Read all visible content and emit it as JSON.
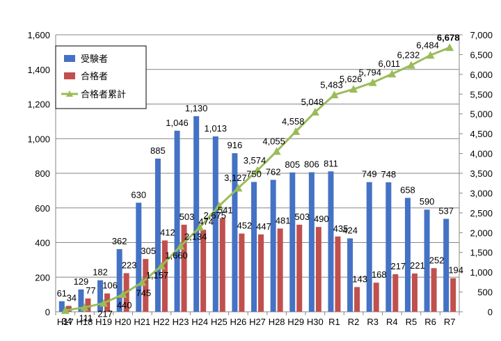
{
  "chart_data": {
    "type": "bar",
    "categories": [
      "H17",
      "H18",
      "H19",
      "H20",
      "H21",
      "H22",
      "H23",
      "H24",
      "H25",
      "H26",
      "H27",
      "H28",
      "H29",
      "H30",
      "R1",
      "R2",
      "R3",
      "R4",
      "R5",
      "R6",
      "R7"
    ],
    "series": [
      {
        "name": "受験者",
        "type": "bar",
        "axis": "left",
        "color": "#4472c4",
        "values": [
          61,
          129,
          182,
          362,
          630,
          885,
          1046,
          1130,
          1013,
          916,
          750,
          762,
          805,
          806,
          811,
          424,
          749,
          748,
          658,
          590,
          537
        ],
        "labels": [
          "61",
          "129",
          "182",
          "362",
          "630",
          "885",
          "1,046",
          "1,130",
          "1,013",
          "916",
          "750",
          "762",
          "805",
          "806",
          "811",
          "424",
          "749",
          "748",
          "658",
          "590",
          "537"
        ]
      },
      {
        "name": "合格者",
        "type": "bar",
        "axis": "left",
        "color": "#c0504d",
        "values": [
          34,
          77,
          106,
          223,
          305,
          412,
          503,
          474,
          541,
          452,
          447,
          481,
          503,
          490,
          435,
          143,
          168,
          217,
          221,
          252,
          194
        ],
        "labels": [
          "34",
          "77",
          "106",
          "223",
          "305",
          "412",
          "503",
          "474",
          "541",
          "452",
          "447",
          "481",
          "503",
          "490",
          "435",
          "143",
          "168",
          "217",
          "221",
          "252",
          "194"
        ]
      },
      {
        "name": "合格者累計",
        "type": "line",
        "axis": "right",
        "color": "#9bbb59",
        "values": [
          34,
          111,
          217,
          440,
          745,
          1157,
          1660,
          2134,
          2675,
          3127,
          3574,
          4055,
          4558,
          5048,
          5483,
          5626,
          5794,
          6011,
          6232,
          6484,
          6678
        ],
        "labels": [
          "34",
          "111",
          "217",
          "440",
          "745",
          "1,157",
          "1,660",
          "2,134",
          "2,675",
          "3,127",
          "3,574",
          "4,055",
          "4,558",
          "5,048",
          "5,483",
          "5,626",
          "5,794",
          "6,011",
          "6,232",
          "6,484",
          "6,678"
        ]
      }
    ],
    "y_left": {
      "min": 0,
      "max": 1600,
      "step": 200,
      "tick_labels": [
        "0",
        "200",
        "400",
        "600",
        "800",
        "1,000",
        "1,200",
        "1,400",
        "1,600"
      ]
    },
    "y_right": {
      "min": 0,
      "max": 7000,
      "step": 500,
      "tick_labels": [
        "0",
        "500",
        "1,000",
        "1,500",
        "2,000",
        "2,500",
        "3,000",
        "3,500",
        "4,000",
        "4,500",
        "5,000",
        "5,500",
        "6,000",
        "6,500",
        "7,000"
      ]
    },
    "grid": true,
    "legend": "top-left",
    "title": "",
    "xlabel": "",
    "ylabel": ""
  }
}
